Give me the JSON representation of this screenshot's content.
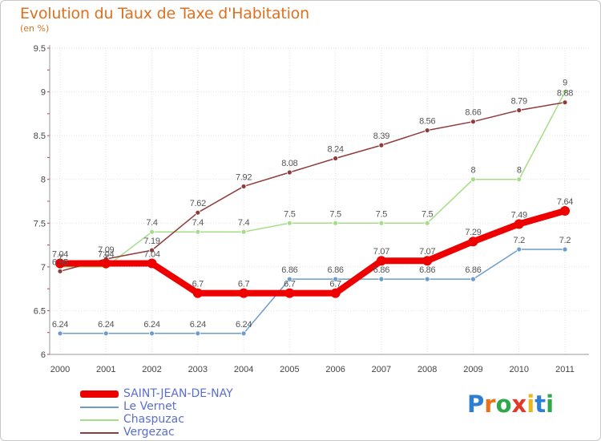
{
  "title": "Evolution du Taux de Taxe d'Habitation",
  "subtitle": "(en %)",
  "logo": {
    "text": "Proxiti",
    "letter_colors": [
      "#2e7fd0",
      "#e8731a",
      "#2ea84a",
      "#e03a2a",
      "#e8b81a",
      "#2e7fd0",
      "#2ea84a"
    ]
  },
  "chart_data": {
    "type": "line",
    "x": [
      "2000",
      "2001",
      "2002",
      "2003",
      "2004",
      "2005",
      "2006",
      "2007",
      "2008",
      "2009",
      "2010",
      "2011"
    ],
    "ylim": [
      6,
      9.5
    ],
    "yticks": [
      "6",
      "6.5",
      "7",
      "7.5",
      "8",
      "8.5",
      "9",
      "9.5"
    ],
    "grid": true,
    "legend_position": "bottom-left",
    "series": [
      {
        "name": "SAINT-JEAN-DE-NAY",
        "color": "#ee0000",
        "values": [
          7.04,
          7.04,
          7.04,
          6.7,
          6.7,
          6.7,
          6.7,
          7.07,
          7.07,
          7.29,
          7.49,
          7.64
        ],
        "labels": [
          "7.04",
          "7.04",
          "7.04",
          "6.7",
          "6.7",
          "6.7",
          "6.7",
          "7.07",
          "7.07",
          "7.29",
          "7.49",
          "7.64"
        ]
      },
      {
        "name": "Le Vernet",
        "color": "#6a9ccc",
        "values": [
          6.24,
          6.24,
          6.24,
          6.24,
          6.24,
          6.86,
          6.86,
          6.86,
          6.86,
          6.86,
          7.2,
          7.2
        ],
        "labels": [
          "6.24",
          "6.24",
          "6.24",
          "6.24",
          "6.24",
          "6.86",
          "6.86",
          "6.86",
          "6.86",
          "6.86",
          "7.2",
          "7.2"
        ]
      },
      {
        "name": "Chaspuzac",
        "color": "#a6dd88",
        "values": [
          7,
          7,
          7.4,
          7.4,
          7.4,
          7.5,
          7.5,
          7.5,
          7.5,
          8,
          8,
          9
        ],
        "labels": [
          "7",
          "7",
          "7.4",
          "7.4",
          "7.4",
          "7.5",
          "7.5",
          "7.5",
          "7.5",
          "8",
          "8",
          "9"
        ]
      },
      {
        "name": "Vergezac",
        "color": "#8e3b3b",
        "values": [
          6.95,
          7.09,
          7.19,
          7.62,
          7.92,
          8.08,
          8.24,
          8.39,
          8.56,
          8.66,
          8.79,
          8.88
        ],
        "labels": [
          "6.95",
          "7.09",
          "7.19",
          "7.62",
          "7.92",
          "8.08",
          "8.24",
          "8.39",
          "8.56",
          "8.66",
          "8.79",
          "8.88"
        ]
      }
    ]
  }
}
